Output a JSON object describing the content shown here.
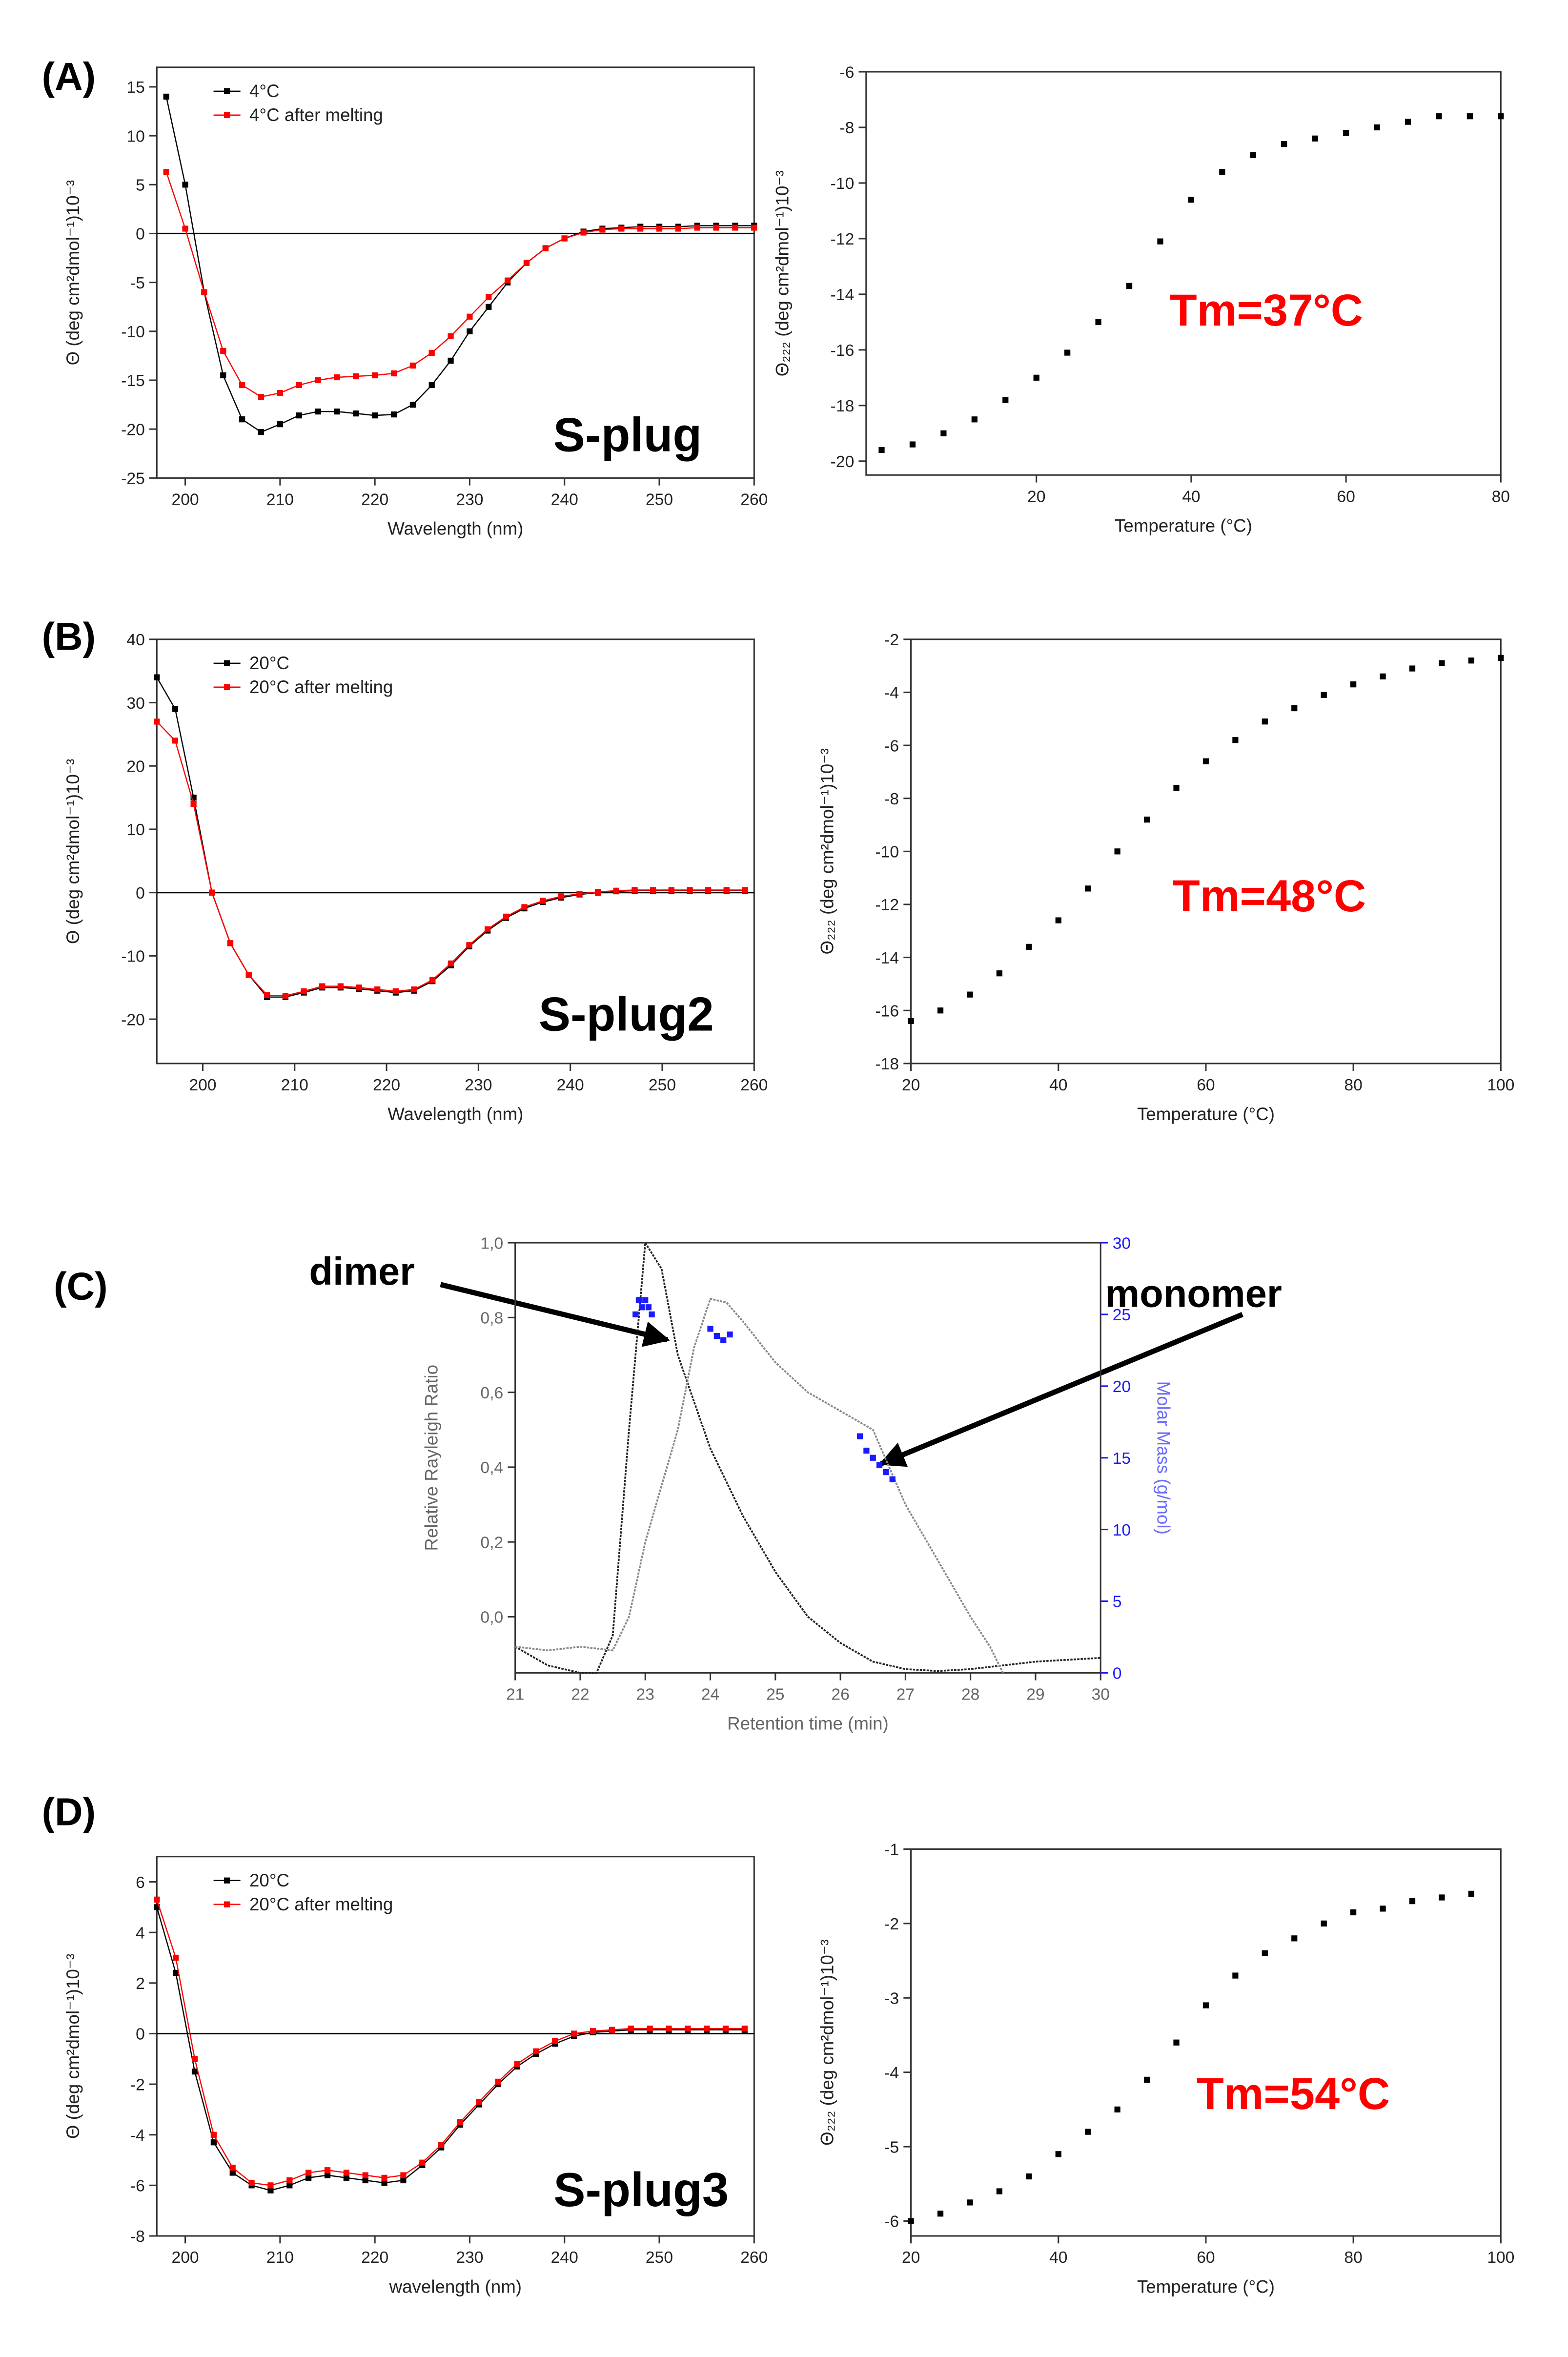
{
  "labels": [
    "(A)",
    "(B)",
    "(C)",
    "(D)"
  ],
  "chart_data": [
    {
      "type": "line",
      "xlabel": "Wavelength (nm)",
      "ylabel": "Θ (deg cm²dmol⁻¹)10⁻³",
      "annotation": "S-plug",
      "xlim": [
        197,
        260
      ],
      "ylim": [
        -25,
        17
      ],
      "xticks": [
        200,
        210,
        220,
        230,
        240,
        250,
        260
      ],
      "yticks": [
        -25,
        -20,
        -15,
        -10,
        -5,
        0,
        5,
        10,
        15
      ],
      "legend": "upper left",
      "zero_line": true,
      "x": [
        198,
        200,
        202,
        204,
        206,
        208,
        210,
        212,
        214,
        216,
        218,
        220,
        222,
        224,
        226,
        228,
        230,
        232,
        234,
        236,
        238,
        240,
        242,
        244,
        246,
        248,
        250,
        252,
        254,
        256,
        258,
        260
      ],
      "series": [
        {
          "name": "4°C",
          "color": "#000000",
          "marker": true,
          "values": [
            14,
            5,
            -6,
            -14.5,
            -19,
            -20.3,
            -19.5,
            -18.6,
            -18.2,
            -18.2,
            -18.4,
            -18.6,
            -18.5,
            -17.5,
            -15.5,
            -13,
            -10,
            -7.5,
            -5,
            -3,
            -1.5,
            -0.5,
            0.2,
            0.5,
            0.6,
            0.7,
            0.7,
            0.7,
            0.8,
            0.8,
            0.8,
            0.8
          ]
        },
        {
          "name": "4°C after melting",
          "color": "#ff0000",
          "marker": true,
          "values": [
            6.3,
            0.5,
            -6,
            -12,
            -15.5,
            -16.7,
            -16.3,
            -15.5,
            -15,
            -14.7,
            -14.6,
            -14.5,
            -14.3,
            -13.5,
            -12.2,
            -10.5,
            -8.5,
            -6.5,
            -4.8,
            -3,
            -1.5,
            -0.5,
            0.1,
            0.4,
            0.5,
            0.5,
            0.5,
            0.5,
            0.6,
            0.6,
            0.6,
            0.6
          ]
        }
      ]
    },
    {
      "type": "scatter",
      "xlabel": "Temperature (°C)",
      "ylabel": "Θ₂₂₂ (deg cm²dmol⁻¹)10⁻³",
      "annotation": "Tm=37°C",
      "xlim": [
        -2,
        80
      ],
      "ylim": [
        -20.5,
        -6
      ],
      "xticks": [
        20,
        40,
        60,
        80
      ],
      "yticks": [
        -20,
        -18,
        -16,
        -14,
        -12,
        -10,
        -8,
        -6
      ],
      "x": [
        0,
        4,
        8,
        12,
        16,
        20,
        24,
        28,
        32,
        36,
        40,
        44,
        48,
        52,
        56,
        60,
        64,
        68,
        72,
        76,
        80
      ],
      "series": [
        {
          "color": "#000000",
          "values": [
            -19.6,
            -19.4,
            -19.0,
            -18.5,
            -17.8,
            -17.0,
            -16.1,
            -15.0,
            -13.7,
            -12.1,
            -10.6,
            -9.6,
            -9.0,
            -8.6,
            -8.4,
            -8.2,
            -8.0,
            -7.8,
            -7.6,
            -7.6,
            -7.6
          ]
        }
      ]
    },
    {
      "type": "line",
      "xlabel": "Wavelength (nm)",
      "ylabel": "Θ (deg cm²dmol⁻¹)10⁻³",
      "annotation": "S-plug2",
      "xlim": [
        195,
        260
      ],
      "ylim": [
        -27,
        40
      ],
      "xticks": [
        200,
        210,
        220,
        230,
        240,
        250,
        260
      ],
      "yticks": [
        -20,
        -10,
        0,
        10,
        20,
        30,
        40
      ],
      "legend": "upper left",
      "zero_line": true,
      "x": [
        195,
        197,
        199,
        201,
        203,
        205,
        207,
        209,
        211,
        213,
        215,
        217,
        219,
        221,
        223,
        225,
        227,
        229,
        231,
        233,
        235,
        237,
        239,
        241,
        243,
        245,
        247,
        249,
        251,
        253,
        255,
        257,
        259
      ],
      "series": [
        {
          "name": "20°C",
          "color": "#000000",
          "marker": true,
          "values": [
            34,
            29,
            15,
            0,
            -8,
            -13,
            -16.5,
            -16.5,
            -15.8,
            -15,
            -15,
            -15.2,
            -15.5,
            -15.8,
            -15.5,
            -14,
            -11.5,
            -8.5,
            -6,
            -4,
            -2.5,
            -1.5,
            -0.8,
            -0.3,
            0,
            0.2,
            0.3,
            0.3,
            0.3,
            0.3,
            0.3,
            0.3,
            0.3
          ]
        },
        {
          "name": "20°C after melting",
          "color": "#ff0000",
          "marker": true,
          "values": [
            27,
            24,
            14,
            0,
            -8,
            -13,
            -16.2,
            -16.3,
            -15.6,
            -14.8,
            -14.8,
            -15,
            -15.3,
            -15.6,
            -15.3,
            -13.8,
            -11.2,
            -8.3,
            -5.8,
            -3.8,
            -2.3,
            -1.3,
            -0.6,
            -0.2,
            0.1,
            0.3,
            0.4,
            0.4,
            0.4,
            0.4,
            0.4,
            0.4,
            0.4
          ]
        }
      ]
    },
    {
      "type": "scatter",
      "xlabel": "Temperature (°C)",
      "ylabel": "Θ₂₂₂ (deg cm²dmol⁻¹)10⁻³",
      "annotation": "Tm=48°C",
      "xlim": [
        20,
        100
      ],
      "ylim": [
        -18,
        -2
      ],
      "xticks": [
        20,
        40,
        60,
        80,
        100
      ],
      "yticks": [
        -18,
        -16,
        -14,
        -12,
        -10,
        -8,
        -6,
        -4,
        -2
      ],
      "x": [
        20,
        24,
        28,
        32,
        36,
        40,
        44,
        48,
        52,
        56,
        60,
        64,
        68,
        72,
        76,
        80,
        84,
        88,
        92,
        96,
        100
      ],
      "series": [
        {
          "color": "#000000",
          "values": [
            -16.4,
            -16.0,
            -15.4,
            -14.6,
            -13.6,
            -12.6,
            -11.4,
            -10.0,
            -8.8,
            -7.6,
            -6.6,
            -5.8,
            -5.1,
            -4.6,
            -4.1,
            -3.7,
            -3.4,
            -3.1,
            -2.9,
            -2.8,
            -2.7
          ]
        }
      ]
    },
    {
      "type": "line",
      "xlabel": "Retention time (min)",
      "ylabel": "Relative Rayleigh Ratio",
      "y2label": "Molar Mass (g/mol)",
      "annotations": [
        "dimer",
        "monomer"
      ],
      "xlim": [
        21,
        30
      ],
      "ylim": [
        -0.15,
        1.0
      ],
      "y2lim": [
        0,
        30
      ],
      "xticks": [
        21,
        22,
        23,
        24,
        25,
        26,
        27,
        28,
        29,
        30
      ],
      "yticks": [
        {
          "value": 0,
          "label": "0,0"
        },
        {
          "value": 0.2,
          "label": "0,2"
        },
        {
          "value": 0.4,
          "label": "0,4"
        },
        {
          "value": 0.6,
          "label": "0,6"
        },
        {
          "value": 0.8,
          "label": "0,8"
        },
        {
          "value": 1.0,
          "label": "1,0"
        }
      ],
      "y2ticks": [
        0,
        5,
        10,
        15,
        20,
        25,
        30
      ],
      "series": [
        {
          "color": "#222222",
          "x": [
            21,
            21.5,
            22,
            22.25,
            22.5,
            22.75,
            23,
            23.25,
            23.5,
            24,
            24.5,
            25,
            25.5,
            26,
            26.5,
            27,
            27.5,
            28,
            28.5,
            29,
            30
          ],
          "values": [
            -0.08,
            -0.13,
            -0.15,
            -0.15,
            -0.05,
            0.5,
            1.0,
            0.93,
            0.7,
            0.45,
            0.27,
            0.12,
            0.0,
            -0.07,
            -0.12,
            -0.14,
            -0.145,
            -0.14,
            -0.13,
            -0.12,
            -0.11
          ]
        },
        {
          "color": "#888888",
          "x": [
            21,
            21.5,
            22,
            22.5,
            22.75,
            23,
            23.5,
            23.75,
            24,
            24.25,
            24.5,
            25,
            25.5,
            26,
            26.5,
            26.75,
            27,
            27.5,
            28,
            28.3,
            28.5
          ],
          "values": [
            -0.08,
            -0.09,
            -0.08,
            -0.09,
            0.0,
            0.2,
            0.5,
            0.72,
            0.85,
            0.84,
            0.79,
            0.68,
            0.6,
            0.55,
            0.5,
            0.4,
            0.3,
            0.15,
            0.0,
            -0.08,
            -0.15
          ]
        },
        {
          "color": "#1a1aff",
          "axis": "y2",
          "marker": true,
          "connect": false,
          "x": [
            22.85,
            22.9,
            22.95,
            23.0,
            23.05,
            23.1,
            24.0,
            24.1,
            24.2,
            24.3,
            26.3,
            26.4,
            26.5,
            26.6,
            26.7,
            26.8
          ],
          "values": [
            25,
            26,
            25.5,
            26,
            25.5,
            25,
            24,
            23.5,
            23.2,
            23.6,
            16.5,
            15.5,
            15,
            14.5,
            14,
            13.5
          ]
        }
      ]
    },
    {
      "type": "line",
      "xlabel": "wavelength (nm)",
      "ylabel": "Θ (deg cm²dmol⁻¹)10⁻³",
      "annotation": "S-plug3",
      "xlim": [
        197,
        260
      ],
      "ylim": [
        -8,
        7
      ],
      "xticks": [
        200,
        210,
        220,
        230,
        240,
        250,
        260
      ],
      "yticks": [
        -8,
        -6,
        -4,
        -2,
        0,
        2,
        4,
        6
      ],
      "legend": "upper left",
      "zero_line": true,
      "x": [
        197,
        199,
        201,
        203,
        205,
        207,
        209,
        211,
        213,
        215,
        217,
        219,
        221,
        223,
        225,
        227,
        229,
        231,
        233,
        235,
        237,
        239,
        241,
        243,
        245,
        247,
        249,
        251,
        253,
        255,
        257,
        259
      ],
      "series": [
        {
          "name": "20°C",
          "color": "#000000",
          "marker": true,
          "values": [
            5,
            2.4,
            -1.5,
            -4.3,
            -5.5,
            -6,
            -6.2,
            -6,
            -5.7,
            -5.6,
            -5.7,
            -5.8,
            -5.9,
            -5.8,
            -5.2,
            -4.5,
            -3.6,
            -2.8,
            -2,
            -1.3,
            -0.8,
            -0.4,
            -0.1,
            0.05,
            0.1,
            0.15,
            0.15,
            0.15,
            0.15,
            0.15,
            0.15,
            0.15
          ]
        },
        {
          "name": "20°C after melting",
          "color": "#ff0000",
          "marker": true,
          "values": [
            5.3,
            3,
            -1,
            -4,
            -5.3,
            -5.9,
            -6,
            -5.8,
            -5.5,
            -5.4,
            -5.5,
            -5.6,
            -5.7,
            -5.6,
            -5.1,
            -4.4,
            -3.5,
            -2.7,
            -1.9,
            -1.2,
            -0.7,
            -0.3,
            0,
            0.1,
            0.15,
            0.2,
            0.2,
            0.2,
            0.2,
            0.2,
            0.2,
            0.2
          ]
        }
      ]
    },
    {
      "type": "scatter",
      "xlabel": "Temperature (°C)",
      "ylabel": "Θ₂₂₂ (deg cm²dmol⁻¹)10⁻³",
      "annotation": "Tm=54°C",
      "xlim": [
        20,
        100
      ],
      "ylim": [
        -6.2,
        -1
      ],
      "xticks": [
        20,
        40,
        60,
        80,
        100
      ],
      "yticks": [
        -6,
        -5,
        -4,
        -3,
        -2,
        -1
      ],
      "x": [
        20,
        24,
        28,
        32,
        36,
        40,
        44,
        48,
        52,
        56,
        60,
        64,
        68,
        72,
        76,
        80,
        84,
        88,
        92,
        96
      ],
      "series": [
        {
          "color": "#000000",
          "values": [
            -6.0,
            -5.9,
            -5.75,
            -5.6,
            -5.4,
            -5.1,
            -4.8,
            -4.5,
            -4.1,
            -3.6,
            -3.1,
            -2.7,
            -2.4,
            -2.2,
            -2.0,
            -1.85,
            -1.8,
            -1.7,
            -1.65,
            -1.6
          ]
        }
      ]
    }
  ]
}
